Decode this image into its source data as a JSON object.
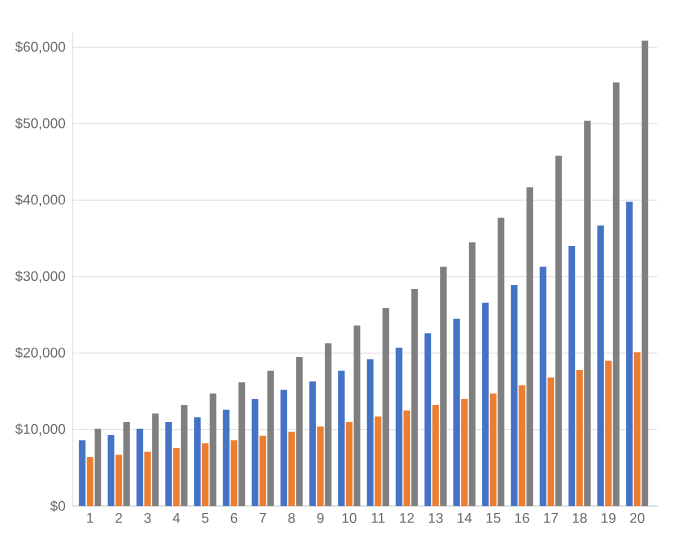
{
  "chart_data": {
    "type": "bar",
    "categories": [
      "1",
      "2",
      "3",
      "4",
      "5",
      "6",
      "7",
      "8",
      "9",
      "10",
      "11",
      "12",
      "13",
      "14",
      "15",
      "16",
      "17",
      "18",
      "19",
      "20"
    ],
    "series": [
      {
        "color": "#4472c4",
        "values": [
          8600,
          9300,
          10100,
          11000,
          11600,
          12600,
          14000,
          15200,
          16300,
          17700,
          19200,
          20700,
          22600,
          24500,
          26600,
          28900,
          31300,
          34000,
          36700,
          39800
        ]
      },
      {
        "color": "#ed7d31",
        "values": [
          6400,
          6700,
          7100,
          7600,
          8200,
          8600,
          9200,
          9700,
          10400,
          11000,
          11700,
          12500,
          13200,
          14000,
          14700,
          15800,
          16800,
          17800,
          19000,
          20100
        ]
      },
      {
        "color": "#7f7f7f",
        "values": [
          10100,
          11000,
          12100,
          13200,
          14700,
          16200,
          17700,
          19500,
          21300,
          23600,
          25900,
          28400,
          31300,
          34500,
          37700,
          41700,
          45800,
          50400,
          55400,
          60900
        ]
      }
    ],
    "ylim": [
      0,
      62000
    ],
    "yticks": [
      {
        "value": 0,
        "label": "$0"
      },
      {
        "value": 10000,
        "label": "$10,000"
      },
      {
        "value": 20000,
        "label": "$20,000"
      },
      {
        "value": 30000,
        "label": "$30,000"
      },
      {
        "value": 40000,
        "label": "$40,000"
      },
      {
        "value": 50000,
        "label": "$50,000"
      },
      {
        "value": 60000,
        "label": "$60,000"
      }
    ],
    "grid": "y"
  }
}
